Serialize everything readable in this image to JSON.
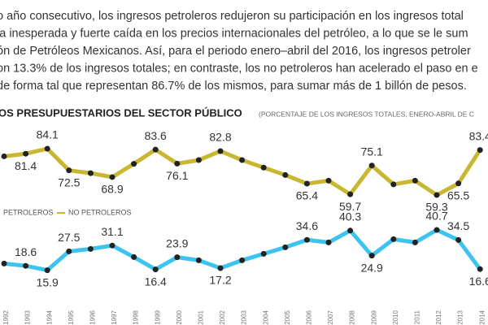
{
  "paragraph": [
    "o año consecutivo, los ingresos petroleros redujeron su participación en los ingresos total",
    "la inesperada y fuerte caída en los precios internacionales del petróleo, a lo que se le sum",
    "ón de Petróleos Mexicanos. Así, para el periodo enero–abril del 2016, los ingresos petroler",
    "on 13.3% de los ingresos totales; en contraste, los no petroleros han acelerado el paso en e",
    "de forma tal que representan 86.7% de los mismos, para sumar más de 1 billón de pesos."
  ],
  "chart_data": {
    "type": "line",
    "title": "OS PRESUPUESTARIOS DEL SECTOR PÚBLICO",
    "subtitle": "(PORCENTAJE DE LOS INGRESOS TOTALES, ENERO-ABRIL DE C",
    "categories": [
      "1992",
      "1993",
      "1994",
      "1995",
      "1996",
      "1997",
      "1998",
      "1999",
      "2000",
      "2001",
      "2002",
      "2003",
      "2004",
      "2005",
      "2006",
      "2007",
      "2008",
      "2009",
      "2010",
      "2011",
      "2012",
      "2013",
      "2014"
    ],
    "ylim": [
      55,
      90
    ],
    "y2lim": [
      10,
      45
    ],
    "series": [
      {
        "name": "PETROLEROS",
        "color": "#3cc3f0",
        "axis": "y2",
        "values": [
          20,
          18.6,
          15.9,
          27.5,
          29,
          31.1,
          24,
          16.4,
          23.9,
          22,
          17.2,
          22,
          26,
          30,
          34.6,
          33,
          40.3,
          24.9,
          35,
          33,
          40.7,
          34.5,
          16.6
        ],
        "value_labels": [
          null,
          "18.6",
          "15.9",
          "27.5",
          null,
          "31.1",
          null,
          "16.4",
          "23.9",
          null,
          "17.2",
          null,
          null,
          null,
          "34.6",
          null,
          "40.3",
          "24.9",
          null,
          null,
          "40.7",
          "34.5",
          "16.6"
        ]
      },
      {
        "name": "NO PETROLEROS",
        "color": "#c9b631",
        "values": [
          80,
          81.4,
          84.1,
          72.5,
          71,
          68.9,
          76,
          83.6,
          76.1,
          78,
          82.8,
          78,
          74,
          70,
          65.4,
          67,
          59.7,
          75.1,
          65,
          67,
          59.3,
          65.5,
          83.4
        ],
        "value_labels": [
          null,
          "81.4",
          "84.1",
          "72.5",
          null,
          "68.9",
          null,
          "83.6",
          "76.1",
          null,
          "82.8",
          null,
          null,
          null,
          "65.4",
          null,
          "59.7",
          "75.1",
          null,
          null,
          "59.3",
          "65.5",
          "83.4"
        ]
      }
    ]
  }
}
